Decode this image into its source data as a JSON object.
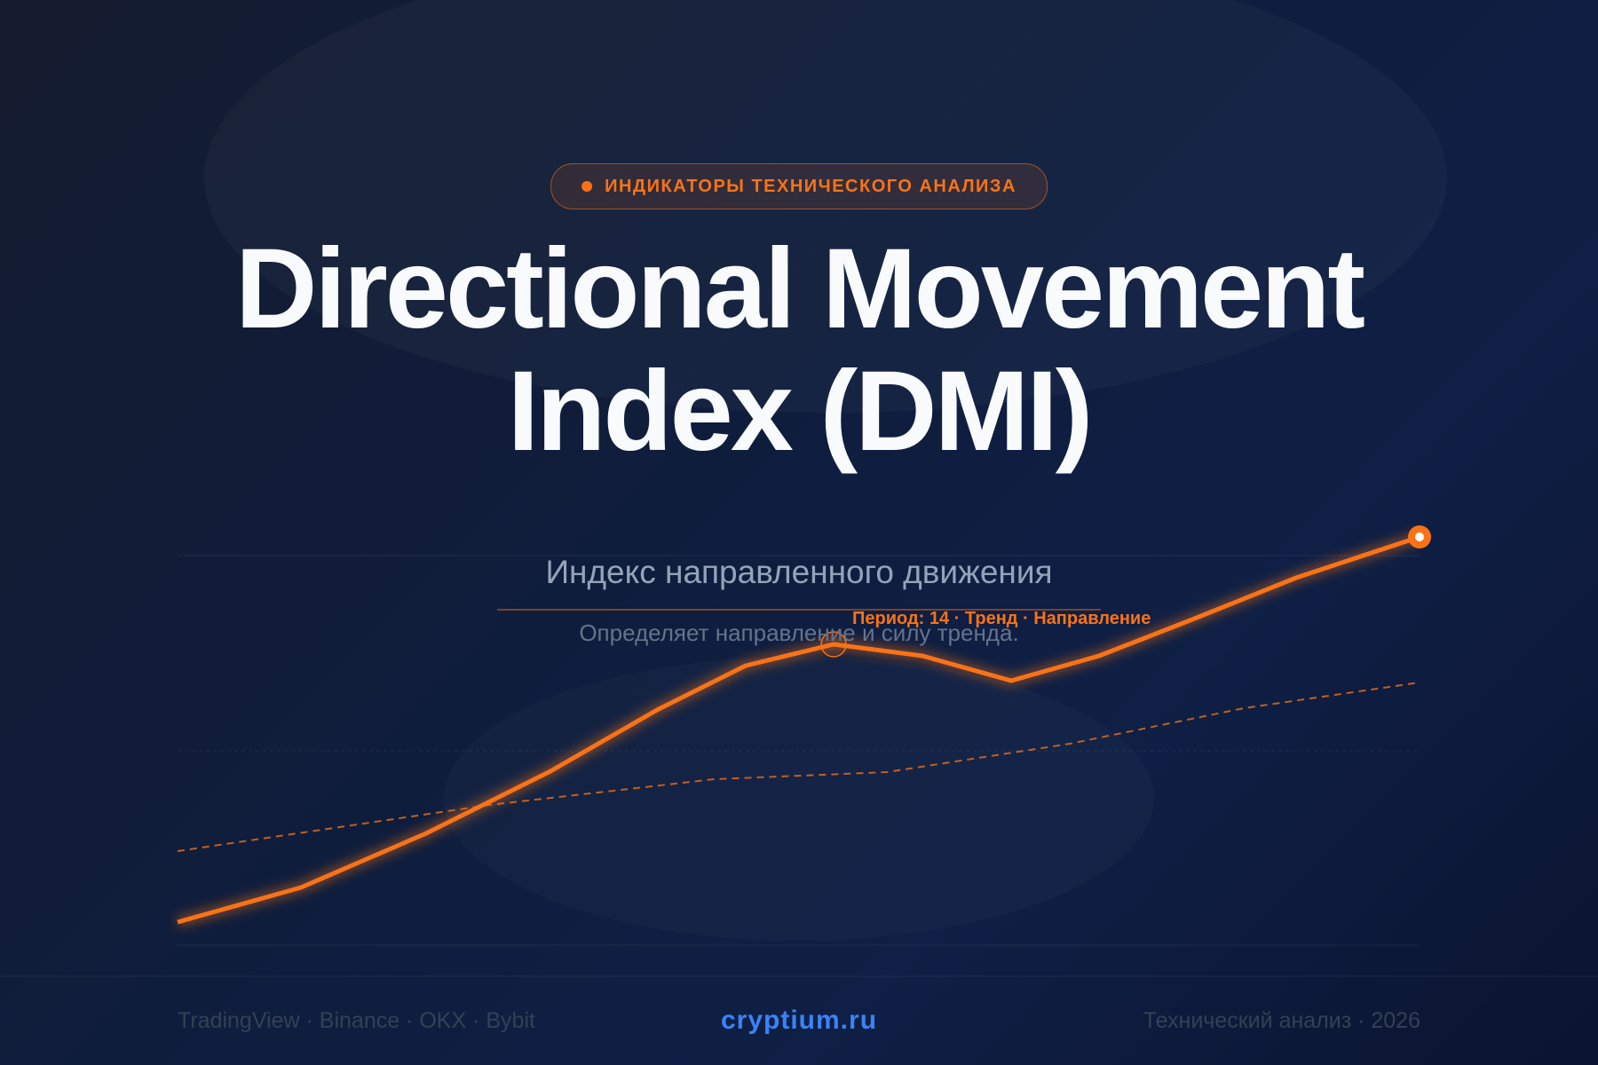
{
  "header": {
    "badge": "ИНДИКАТОРЫ ТЕХНИЧЕСКОГО АНАЛИЗА",
    "title_line1": "Directional Movement",
    "title_line2": "Index (DMI)",
    "subtitle": "Индекс направленного движения",
    "description": "Определяет направление и силу тренда."
  },
  "chart_tag": "Период: 14 · Тренд · Направление",
  "footer": {
    "left": "TradingView · Binance · OKX · Bybit",
    "center": "cryptium.ru",
    "right": "Технический анализ · 2026"
  }
}
